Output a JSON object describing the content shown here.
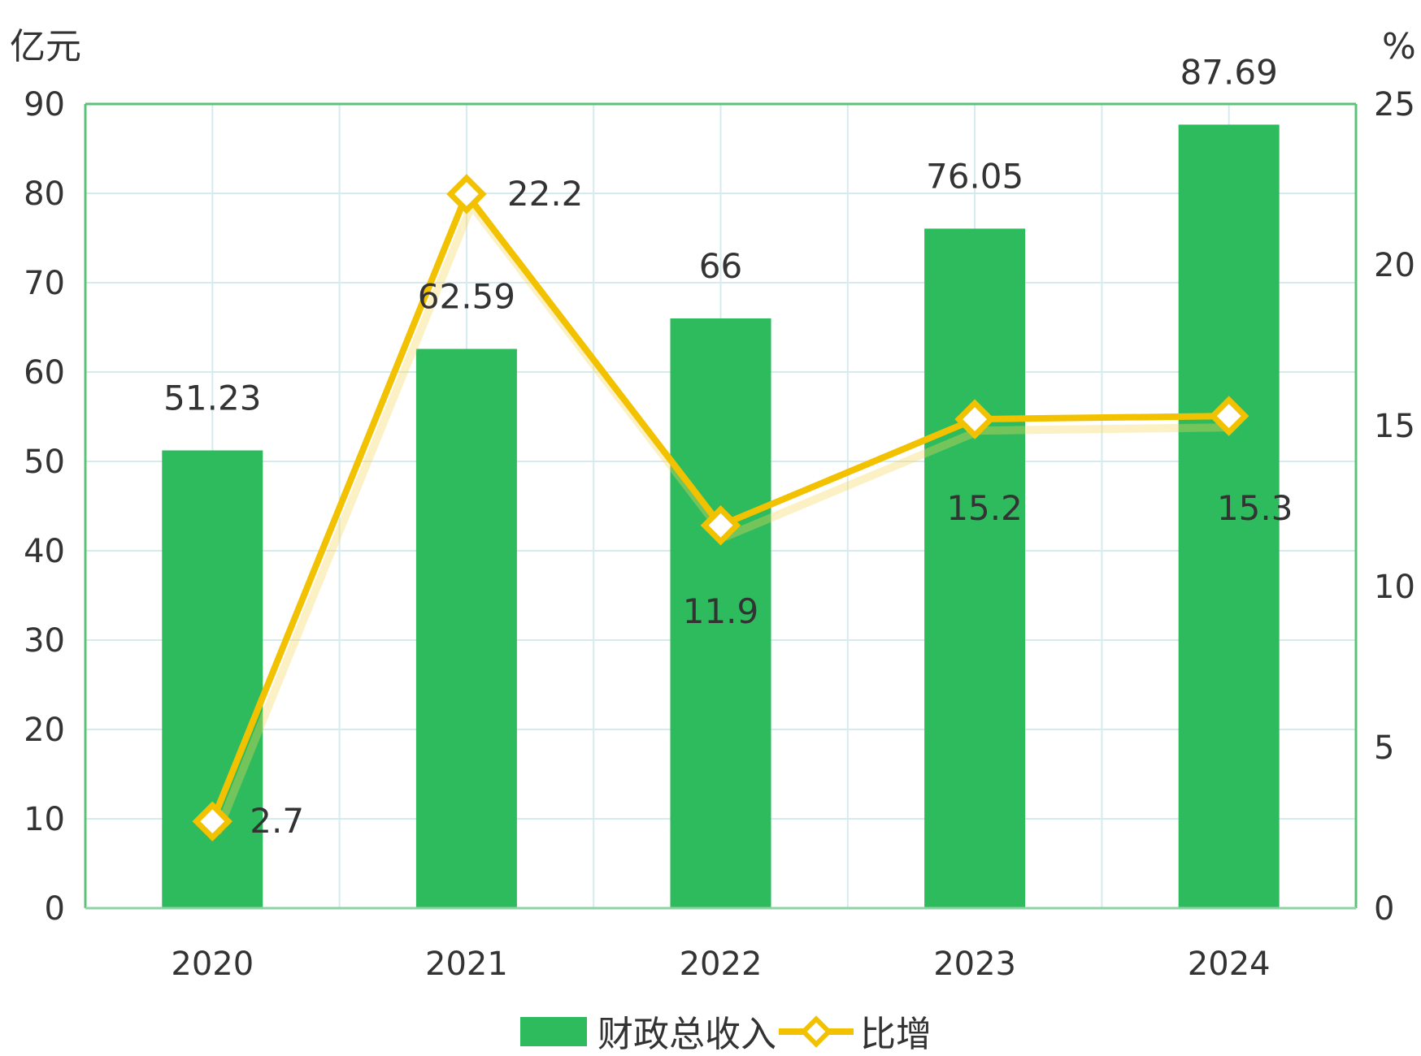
{
  "chart_data": {
    "type": "bar",
    "categories": [
      "2020",
      "2021",
      "2022",
      "2023",
      "2024"
    ],
    "series": [
      {
        "name": "财政总收入",
        "type": "bar",
        "axis": "left",
        "values": [
          51.23,
          62.59,
          66,
          76.05,
          87.69
        ],
        "labels": [
          "51.23",
          "62.59",
          "66",
          "76.05",
          "87.69"
        ],
        "color": "#2dbb5d"
      },
      {
        "name": "比增",
        "type": "line",
        "axis": "right",
        "values": [
          2.7,
          22.2,
          11.9,
          15.2,
          15.3
        ],
        "labels": [
          "2.7",
          "22.2",
          "11.9",
          "15.2",
          "15.3"
        ],
        "color": "#f2c200"
      }
    ],
    "left_axis": {
      "unit": "亿元",
      "ylim": [
        0,
        90
      ],
      "ticks": [
        "0",
        "10",
        "20",
        "30",
        "40",
        "50",
        "60",
        "70",
        "80",
        "90"
      ]
    },
    "right_axis": {
      "unit": "%",
      "ylim": [
        0,
        25
      ],
      "ticks": [
        "0",
        "5",
        "10",
        "15",
        "20",
        "25"
      ]
    },
    "grid": true,
    "legend_position": "bottom-center"
  }
}
